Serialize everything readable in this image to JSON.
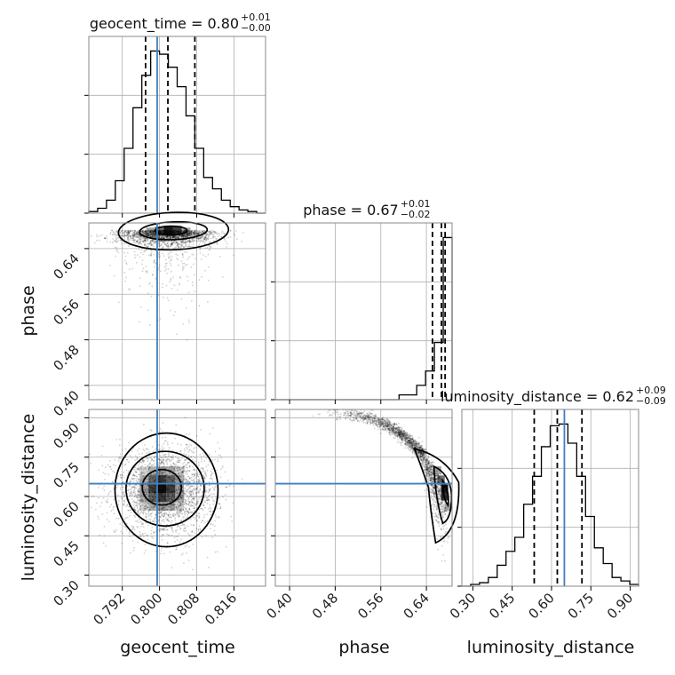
{
  "chart_data": {
    "type": "corner",
    "parameters": [
      "geocent_time",
      "phase",
      "luminosity_distance"
    ],
    "ranges": {
      "geocent_time": [
        0.7848,
        0.8228
      ],
      "phase": [
        0.375,
        0.685
      ],
      "luminosity_distance": [
        0.258,
        0.932
      ]
    },
    "ticks": {
      "geocent_time": [
        "0.792",
        "0.800",
        "0.808",
        "0.816"
      ],
      "phase": [
        "0.40",
        "0.48",
        "0.56",
        "0.64"
      ],
      "luminosity_distance": [
        "0.30",
        "0.45",
        "0.60",
        "0.75",
        "0.90"
      ]
    },
    "truths": {
      "geocent_time": 0.7995,
      "phase": null,
      "luminosity_distance": 0.649
    },
    "titles": [
      {
        "param": "geocent_time",
        "label": "geocent_time",
        "median": "0.80",
        "plus": "+0.01",
        "minus": "−0.00"
      },
      {
        "param": "phase",
        "label": "phase",
        "median": "0.67",
        "plus": "+0.01",
        "minus": "−0.02"
      },
      {
        "param": "luminosity_distance",
        "label": "luminosity_distance",
        "median": "0.62",
        "plus": "+0.09",
        "minus": "−0.09"
      }
    ],
    "histograms": {
      "geocent_time": {
        "quantiles": [
          0.797,
          0.8018,
          0.8076
        ],
        "bin_edges": [
          0.7848,
          0.7867,
          0.7886,
          0.7905,
          0.7924,
          0.7943,
          0.7962,
          0.7981,
          0.8,
          0.8019,
          0.8038,
          0.8057,
          0.8076,
          0.8095,
          0.8114,
          0.8133,
          0.8152,
          0.8171,
          0.819,
          0.8209,
          0.8228
        ],
        "counts": [
          1,
          3,
          8,
          20,
          40,
          65,
          85,
          100,
          98,
          90,
          78,
          60,
          40,
          22,
          15,
          8,
          4,
          2,
          1,
          0
        ]
      },
      "phase": {
        "quantiles": [
          0.6506,
          0.6664,
          0.6728
        ],
        "bin_edges": [
          0.375,
          0.3905,
          0.406,
          0.4215,
          0.437,
          0.4525,
          0.468,
          0.4835,
          0.499,
          0.5145,
          0.53,
          0.5455,
          0.561,
          0.5765,
          0.592,
          0.6075,
          0.623,
          0.6385,
          0.654,
          0.6695,
          0.685
        ],
        "counts": [
          0,
          0,
          0,
          0,
          0,
          0,
          0,
          0,
          0,
          0,
          0,
          0,
          0,
          0,
          1,
          1,
          3,
          6,
          12,
          34
        ]
      },
      "luminosity_distance": {
        "quantiles": [
          0.534,
          0.622,
          0.716
        ],
        "bin_edges": [
          0.258,
          0.2917,
          0.3254,
          0.3591,
          0.3928,
          0.4265,
          0.4602,
          0.4939,
          0.5276,
          0.5613,
          0.595,
          0.6287,
          0.6624,
          0.6961,
          0.7298,
          0.7635,
          0.7972,
          0.8309,
          0.8646,
          0.8983,
          0.932
        ],
        "counts": [
          0,
          1,
          2,
          5,
          12,
          20,
          28,
          47,
          63,
          80,
          92,
          93,
          82,
          63,
          40,
          22,
          13,
          5,
          3,
          1
        ]
      }
    },
    "grid": true
  }
}
